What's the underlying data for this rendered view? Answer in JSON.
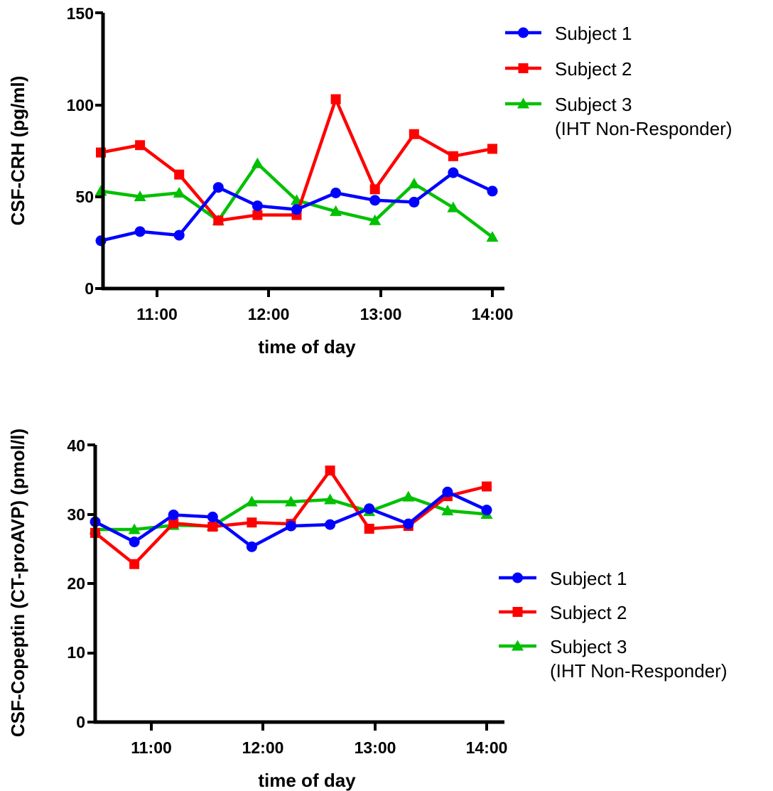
{
  "chart_data": [
    {
      "type": "line",
      "xlabel": "time of day",
      "ylabel": "CSF-CRH (pg/ml)",
      "x_ticks": [
        "11:00",
        "12:00",
        "13:00",
        "14:00"
      ],
      "y_ticks": [
        "0",
        "50",
        "100",
        "150"
      ],
      "xlim": [
        "10:40",
        "14:00"
      ],
      "ylim": [
        0,
        150
      ],
      "x": [
        "10:40",
        "11:00",
        "11:20",
        "11:40",
        "12:00",
        "12:20",
        "12:40",
        "13:00",
        "13:20",
        "13:40",
        "14:00"
      ],
      "legend_position": "top-right",
      "series": [
        {
          "name": "Subject 1",
          "color": "#0000ff",
          "marker": "circle",
          "values": [
            26,
            31,
            29,
            55,
            45,
            43,
            52,
            48,
            47,
            63,
            53
          ]
        },
        {
          "name": "Subject 2",
          "color": "#ff0000",
          "marker": "square",
          "values": [
            74,
            78,
            62,
            37,
            40,
            40,
            103,
            54,
            84,
            72,
            76
          ]
        },
        {
          "name": "Subject 3",
          "name_line2": "(IHT Non-Responder)",
          "color": "#00c000",
          "marker": "triangle",
          "values": [
            53,
            50,
            52,
            37,
            68,
            48,
            42,
            37,
            57,
            44,
            28
          ]
        }
      ]
    },
    {
      "type": "line",
      "xlabel": "time of day",
      "ylabel": "CSF-Copeptin (CT-proAVP) (pmol/l)",
      "x_ticks": [
        "11:00",
        "12:00",
        "13:00",
        "14:00"
      ],
      "y_ticks": [
        "0",
        "10",
        "20",
        "30",
        "40"
      ],
      "xlim": [
        "10:40",
        "14:00"
      ],
      "ylim": [
        0,
        40
      ],
      "x": [
        "10:40",
        "11:00",
        "11:20",
        "11:40",
        "12:00",
        "12:20",
        "12:40",
        "13:00",
        "13:20",
        "13:40",
        "14:00"
      ],
      "legend_position": "right",
      "series": [
        {
          "name": "Subject 1",
          "color": "#0000ff",
          "marker": "circle",
          "values": [
            28.9,
            26.0,
            29.9,
            29.6,
            25.3,
            28.3,
            28.5,
            30.8,
            28.6,
            33.2,
            30.6
          ]
        },
        {
          "name": "Subject 2",
          "color": "#ff0000",
          "marker": "square",
          "values": [
            27.3,
            22.8,
            28.7,
            28.2,
            28.8,
            28.6,
            36.3,
            27.9,
            28.3,
            32.6,
            34.0
          ]
        },
        {
          "name": "Subject 3",
          "name_line2": "(IHT Non-Responder)",
          "color": "#00c000",
          "marker": "triangle",
          "values": [
            27.8,
            27.8,
            28.4,
            28.3,
            31.8,
            31.8,
            32.1,
            30.4,
            32.5,
            30.5,
            30.0
          ]
        }
      ]
    }
  ]
}
